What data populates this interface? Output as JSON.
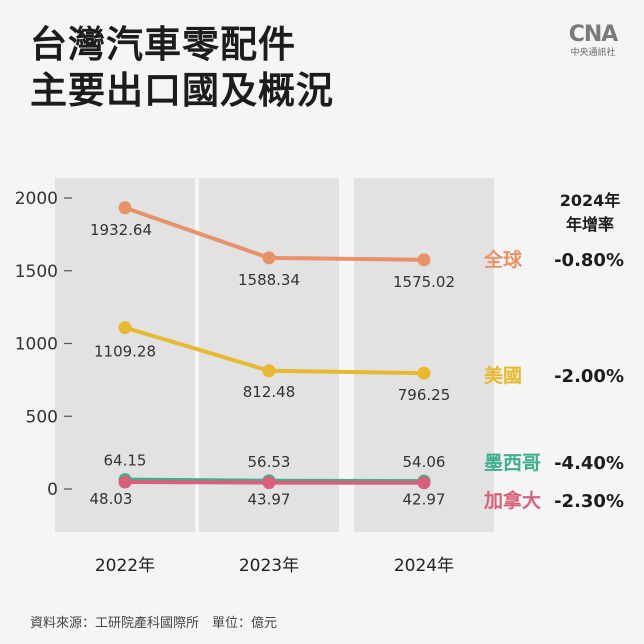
{
  "title_line1": "台灣汽車零配件",
  "title_line2": "主要出口國及概況",
  "logo": {
    "mark": "CNA",
    "text": "中央通訊社"
  },
  "source_label": "資料來源：工研院產科國際所　單位：億元",
  "rate_header_line1": "2024年",
  "rate_header_line2": "年增率",
  "colors": {
    "global": "#e8926a",
    "usa": "#e8b92f",
    "mexico": "#3fae8e",
    "canada": "#d9607a",
    "column_band": "#e2e2e2"
  },
  "chart_data": {
    "type": "line",
    "categories": [
      "2022年",
      "2023年",
      "2024年"
    ],
    "ylim": [
      0,
      2000
    ],
    "yticks": [
      0,
      500,
      1000,
      1500,
      2000
    ],
    "series": [
      {
        "key": "global",
        "name": "全球",
        "values": [
          1932.64,
          1588.34,
          1575.02
        ],
        "labels": [
          "1932.64",
          "1588.34",
          "1575.02"
        ],
        "rate": "-0.80%"
      },
      {
        "key": "usa",
        "name": "美國",
        "values": [
          1109.28,
          812.48,
          796.25
        ],
        "labels": [
          "1109.28",
          "812.48",
          "796.25"
        ],
        "rate": "-2.00%"
      },
      {
        "key": "mexico",
        "name": "墨西哥",
        "values": [
          64.15,
          56.53,
          54.06
        ],
        "labels": [
          "64.15",
          "56.53",
          "54.06"
        ],
        "rate": "-4.40%"
      },
      {
        "key": "canada",
        "name": "加拿大",
        "values": [
          48.03,
          43.97,
          42.97
        ],
        "labels": [
          "48.03",
          "43.97",
          "42.97"
        ],
        "rate": "-2.30%"
      }
    ]
  }
}
